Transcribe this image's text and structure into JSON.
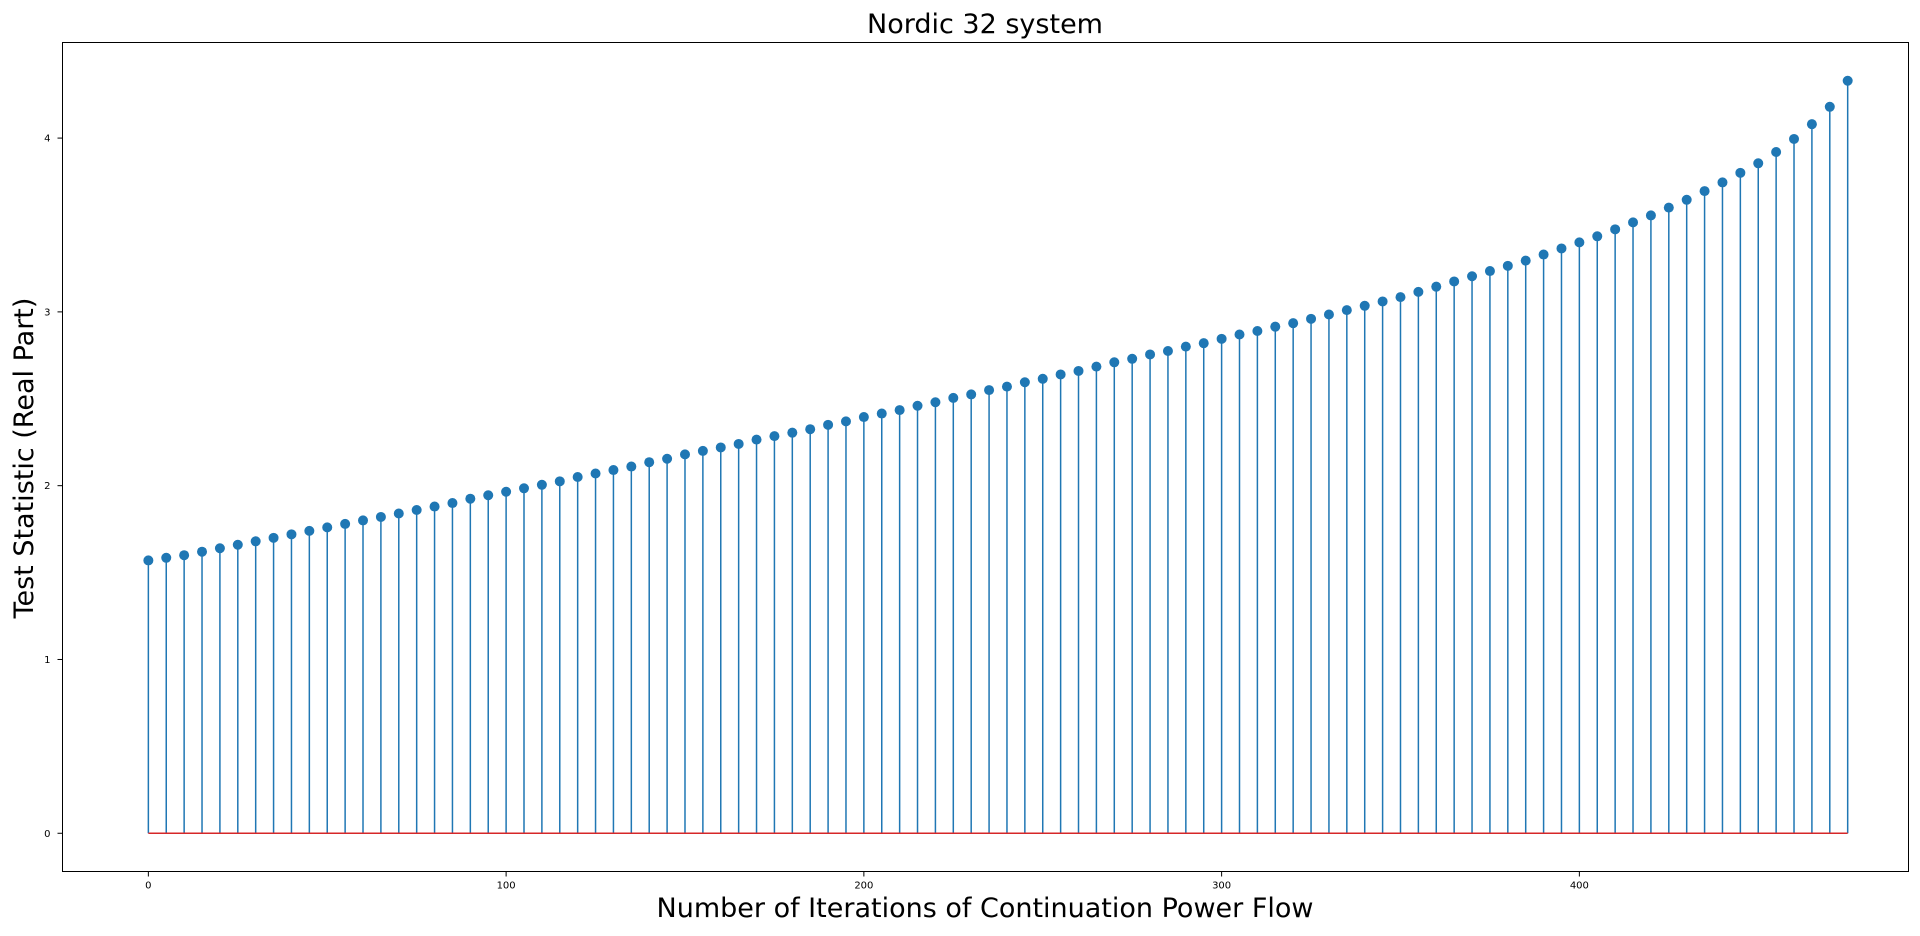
{
  "chart_data": {
    "type": "stem",
    "title": "Nordic 32 system",
    "xlabel": "Number of Iterations of Continuation Power Flow",
    "ylabel": "Test Statistic (Real Part)",
    "xlim": [
      -24,
      492
    ],
    "ylim": [
      -0.22,
      4.55
    ],
    "xticks": [
      0,
      100,
      200,
      300,
      400
    ],
    "yticks": [
      0,
      1,
      2,
      3,
      4
    ],
    "x_step": 5,
    "x_start": 0,
    "baseline": 0,
    "grid": false,
    "colors": {
      "stem": "#1f77b4",
      "marker": "#1f77b4",
      "baseline": "#d62728"
    },
    "values": [
      1.57,
      1.585,
      1.6,
      1.62,
      1.64,
      1.66,
      1.68,
      1.7,
      1.72,
      1.74,
      1.76,
      1.78,
      1.8,
      1.82,
      1.84,
      1.86,
      1.88,
      1.9,
      1.925,
      1.945,
      1.965,
      1.985,
      2.005,
      2.025,
      2.05,
      2.07,
      2.09,
      2.11,
      2.135,
      2.155,
      2.18,
      2.2,
      2.22,
      2.24,
      2.265,
      2.285,
      2.305,
      2.325,
      2.35,
      2.37,
      2.395,
      2.415,
      2.435,
      2.46,
      2.48,
      2.505,
      2.525,
      2.55,
      2.57,
      2.595,
      2.615,
      2.64,
      2.66,
      2.685,
      2.71,
      2.73,
      2.755,
      2.775,
      2.8,
      2.82,
      2.845,
      2.87,
      2.89,
      2.915,
      2.935,
      2.96,
      2.985,
      3.01,
      3.035,
      3.06,
      3.085,
      3.115,
      3.145,
      3.175,
      3.205,
      3.235,
      3.265,
      3.295,
      3.33,
      3.365,
      3.4,
      3.435,
      3.475,
      3.515,
      3.555,
      3.6,
      3.645,
      3.695,
      3.745,
      3.8,
      3.855,
      3.92,
      3.995,
      4.08,
      4.18,
      4.33
    ]
  }
}
